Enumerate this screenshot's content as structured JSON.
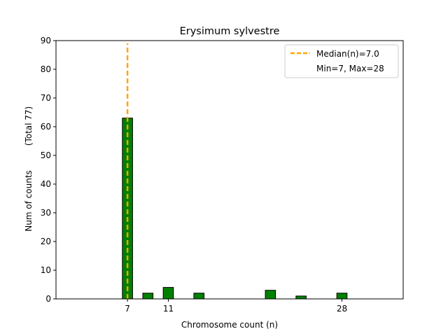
{
  "chart_data": {
    "type": "bar",
    "title": "Erysimum sylvestre",
    "xlabel": "Chromosome count (n)",
    "ylabel": "Num of counts",
    "ylabel_total": "(Total 77)",
    "xlim": [
      0,
      34
    ],
    "ylim": [
      0,
      90
    ],
    "yticks": [
      0,
      10,
      20,
      30,
      40,
      50,
      60,
      70,
      80,
      90
    ],
    "xticks": [
      7,
      11,
      28
    ],
    "bars": [
      {
        "x": 7,
        "value": 63
      },
      {
        "x": 9,
        "value": 2
      },
      {
        "x": 11,
        "value": 4
      },
      {
        "x": 14,
        "value": 2
      },
      {
        "x": 21,
        "value": 3
      },
      {
        "x": 24,
        "value": 1
      },
      {
        "x": 28,
        "value": 2
      }
    ],
    "median_line": {
      "x": 7.0,
      "label": "Median(n)=7.0"
    },
    "legend": {
      "position": "top-right",
      "entries": [
        "Median(n)=7.0",
        "Min=7, Max=28"
      ]
    },
    "grid": false
  },
  "colors": {
    "bar_fill": "#008000",
    "bar_edge": "#000000",
    "median_line": "#ffa500"
  }
}
